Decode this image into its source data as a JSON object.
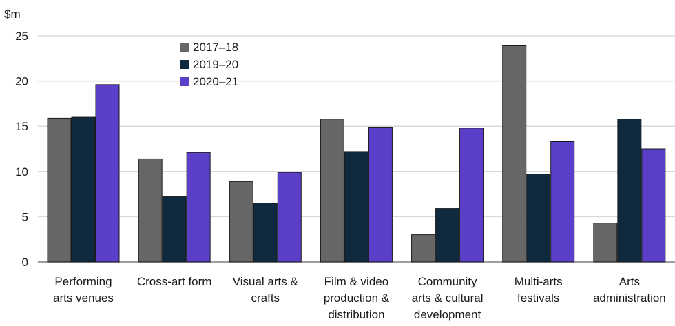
{
  "chart_data": {
    "type": "bar",
    "ylabel": "$m",
    "ylim": [
      0,
      25
    ],
    "yticks": [
      0,
      5,
      10,
      15,
      20,
      25
    ],
    "grid": true,
    "legend_position": "top-left",
    "categories": [
      [
        "Performing",
        "arts venues"
      ],
      [
        "Cross-art form"
      ],
      [
        "Visual arts &",
        "crafts"
      ],
      [
        "Film & video",
        "production &",
        "distribution"
      ],
      [
        "Community",
        "arts & cultural",
        "development"
      ],
      [
        "Multi-arts",
        "festivals"
      ],
      [
        "Arts",
        "administration"
      ]
    ],
    "series": [
      {
        "name": "2017–18",
        "color": "#666666",
        "values": [
          15.9,
          11.4,
          8.9,
          15.8,
          3.0,
          23.9,
          4.3
        ]
      },
      {
        "name": "2019–20",
        "color": "#0f2a3f",
        "values": [
          16.0,
          7.2,
          6.5,
          12.2,
          5.9,
          9.7,
          15.8
        ]
      },
      {
        "name": "2020–21",
        "color": "#5b3fc9",
        "values": [
          19.6,
          12.1,
          9.9,
          14.9,
          14.8,
          13.3,
          12.5
        ]
      }
    ]
  }
}
